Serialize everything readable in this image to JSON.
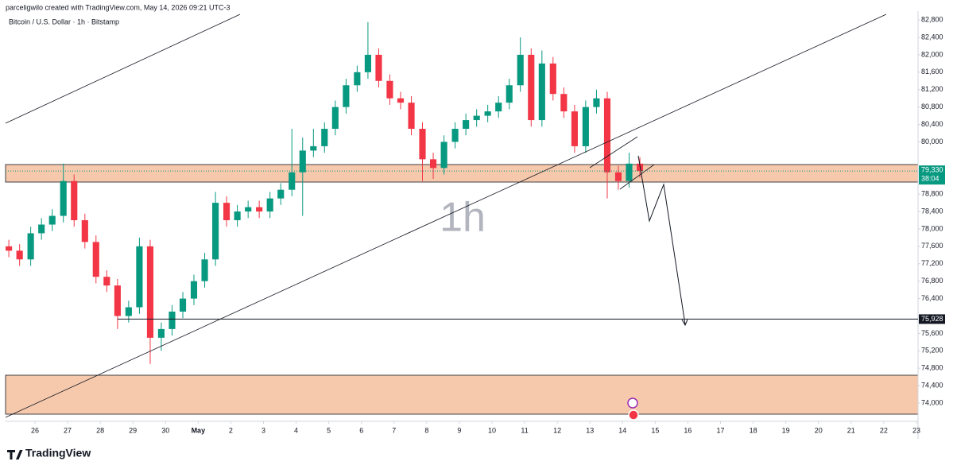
{
  "chart_data": {
    "type": "candlestick",
    "title": "Bitcoin / U.S. Dollar · 1h · Bitstamp",
    "attribution": "parceligwilo created with TradingView.com, May 14, 2026 09:21 UTC-3",
    "watermark": "1h",
    "brand": "TradingView",
    "up_color": "#089981",
    "down_color": "#f23645",
    "x": [
      -0.8,
      -0.47,
      -0.13,
      0.2,
      0.53,
      0.87,
      1.2,
      1.53,
      1.87,
      2.2,
      2.53,
      2.87,
      3.2,
      3.53,
      3.87,
      4.2,
      4.53,
      4.87,
      5.2,
      5.53,
      5.87,
      6.2,
      6.53,
      6.87,
      7.2,
      7.53,
      7.87,
      8.2,
      8.53,
      8.87,
      9.2,
      9.53,
      9.87,
      10.2,
      10.53,
      10.87,
      11.2,
      11.53,
      11.87,
      12.2,
      12.53,
      12.87,
      13.2,
      13.53,
      13.87,
      14.2,
      14.53,
      14.87,
      15.2,
      15.53,
      15.87,
      16.2,
      16.53,
      16.87,
      17.2,
      17.53,
      17.87,
      18.2,
      18.53
    ],
    "open": [
      77600,
      77500,
      77300,
      77900,
      78100,
      78300,
      79100,
      78200,
      77700,
      76900,
      76700,
      76000,
      76200,
      77600,
      75500,
      75700,
      76100,
      76400,
      76800,
      77300,
      78600,
      78200,
      78400,
      78500,
      78400,
      78700,
      78900,
      79300,
      79800,
      79900,
      80300,
      80800,
      81300,
      81600,
      82000,
      81400,
      81000,
      80900,
      80300,
      79600,
      79400,
      80000,
      80300,
      80500,
      80600,
      80700,
      80900,
      81300,
      82000,
      80500,
      81800,
      81100,
      80700,
      79900,
      80800,
      81000,
      79300,
      79100,
      79500
    ],
    "high": [
      77750,
      77650,
      78050,
      78250,
      78450,
      79500,
      79250,
      78350,
      77850,
      77050,
      76850,
      76350,
      77800,
      77750,
      75850,
      76250,
      76550,
      76950,
      77450,
      78850,
      78750,
      78550,
      78650,
      78650,
      78850,
      79050,
      80300,
      80100,
      80300,
      80450,
      80950,
      81450,
      81750,
      82750,
      82150,
      81550,
      81150,
      81050,
      80450,
      79750,
      80150,
      80450,
      80650,
      80750,
      80850,
      81050,
      81450,
      82400,
      82150,
      82100,
      81950,
      81250,
      80850,
      80950,
      81200,
      81150,
      79450,
      79750,
      79650
    ],
    "low": [
      77350,
      77150,
      77150,
      77750,
      77950,
      78150,
      78050,
      77550,
      76750,
      76550,
      75700,
      75850,
      76050,
      74900,
      75200,
      75550,
      75950,
      76250,
      76650,
      77150,
      78050,
      78050,
      78250,
      78250,
      78250,
      78550,
      78750,
      78300,
      79650,
      79750,
      80150,
      80650,
      81150,
      81450,
      81250,
      80850,
      80750,
      80150,
      79100,
      79150,
      79250,
      79850,
      80150,
      80350,
      80450,
      80550,
      80750,
      81150,
      80350,
      80350,
      80950,
      80550,
      79750,
      79750,
      80650,
      78700,
      78900,
      78950,
      79180
    ],
    "close": [
      77500,
      77300,
      77900,
      78100,
      78300,
      79100,
      78200,
      77700,
      76900,
      76700,
      76000,
      76200,
      77600,
      75500,
      75700,
      76100,
      76400,
      76800,
      77300,
      78600,
      78200,
      78400,
      78500,
      78400,
      78700,
      78900,
      79300,
      79800,
      79900,
      80300,
      80800,
      81300,
      81600,
      82000,
      81400,
      81000,
      80900,
      80300,
      79600,
      79400,
      80000,
      80300,
      80500,
      80600,
      80700,
      80900,
      81300,
      82000,
      80500,
      81800,
      81100,
      80700,
      79900,
      80800,
      81000,
      79300,
      79100,
      79500,
      79330
    ],
    "xlim": [
      -0.9,
      27.05
    ],
    "xticks": [
      {
        "value": 0,
        "label": "26"
      },
      {
        "value": 1,
        "label": "27"
      },
      {
        "value": 2,
        "label": "28"
      },
      {
        "value": 3,
        "label": "29"
      },
      {
        "value": 4,
        "label": "30"
      },
      {
        "value": 5,
        "label": "May"
      },
      {
        "value": 6,
        "label": "2"
      },
      {
        "value": 7,
        "label": "3"
      },
      {
        "value": 8,
        "label": "4"
      },
      {
        "value": 9,
        "label": "5"
      },
      {
        "value": 10,
        "label": "6"
      },
      {
        "value": 11,
        "label": "7"
      },
      {
        "value": 12,
        "label": "8"
      },
      {
        "value": 13,
        "label": "9"
      },
      {
        "value": 14,
        "label": "10"
      },
      {
        "value": 15,
        "label": "11"
      },
      {
        "value": 16,
        "label": "12"
      },
      {
        "value": 17,
        "label": "13"
      },
      {
        "value": 18,
        "label": "14"
      },
      {
        "value": 19,
        "label": "15"
      },
      {
        "value": 20,
        "label": "16"
      },
      {
        "value": 21,
        "label": "17"
      },
      {
        "value": 22,
        "label": "18"
      },
      {
        "value": 23,
        "label": "19"
      },
      {
        "value": 24,
        "label": "20"
      },
      {
        "value": 25,
        "label": "21"
      },
      {
        "value": 26,
        "label": "22"
      },
      {
        "value": 27,
        "label": "23"
      }
    ],
    "ylim": [
      73580,
      82930
    ],
    "yticks": [
      {
        "value": 74000,
        "label": "74,000"
      },
      {
        "value": 74400,
        "label": "74,400"
      },
      {
        "value": 74800,
        "label": "74,800"
      },
      {
        "value": 75200,
        "label": "75,200"
      },
      {
        "value": 75600,
        "label": "75,600"
      },
      {
        "value": 76400,
        "label": "76,400"
      },
      {
        "value": 76800,
        "label": "76,800"
      },
      {
        "value": 77200,
        "label": "77,200"
      },
      {
        "value": 77600,
        "label": "77,600"
      },
      {
        "value": 78000,
        "label": "78,000"
      },
      {
        "value": 78400,
        "label": "78,400"
      },
      {
        "value": 78800,
        "label": "78,800"
      },
      {
        "value": 80000,
        "label": "80,000"
      },
      {
        "value": 80400,
        "label": "80,400"
      },
      {
        "value": 80800,
        "label": "80,800"
      },
      {
        "value": 81200,
        "label": "81,200"
      },
      {
        "value": 81600,
        "label": "81,600"
      },
      {
        "value": 82000,
        "label": "82,000"
      },
      {
        "value": 82400,
        "label": "82,400"
      },
      {
        "value": 82800,
        "label": "82,800"
      }
    ],
    "last_price": {
      "value": 79330,
      "label": "79,330"
    },
    "countdown": "38:04",
    "level": {
      "value": 75928,
      "label": "75,928"
    }
  }
}
